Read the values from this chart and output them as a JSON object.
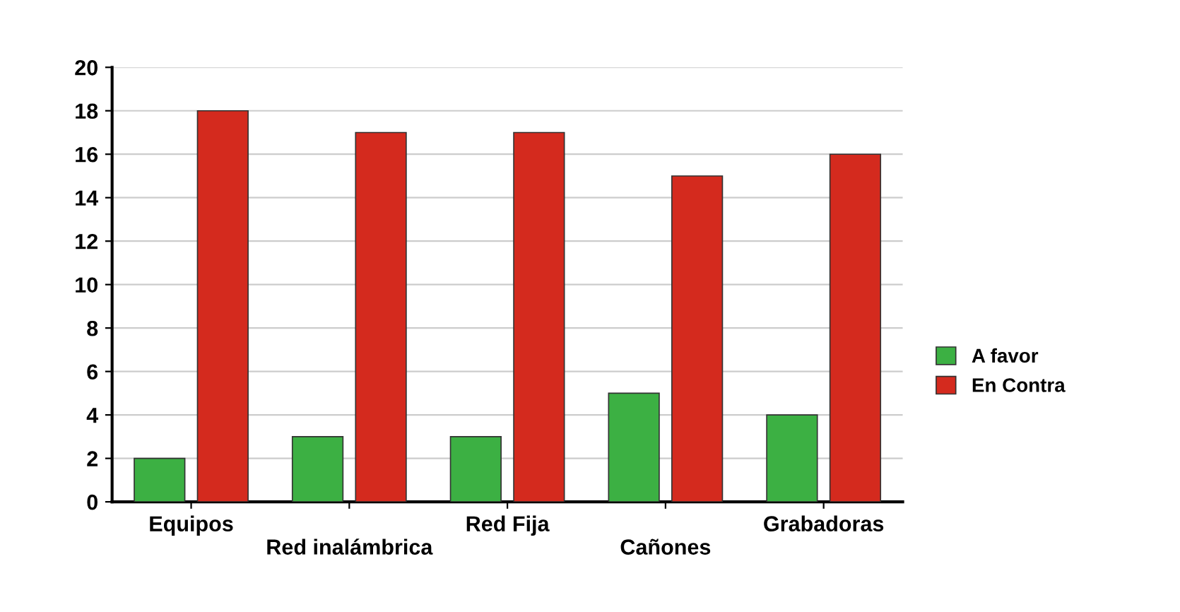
{
  "chart_data": {
    "type": "bar",
    "categories": [
      "Equipos",
      "Red inalámbrica",
      "Red Fija",
      "Cañones",
      "Grabadoras"
    ],
    "series": [
      {
        "name": "A favor",
        "color": "#3cb043",
        "values": [
          2,
          3,
          3,
          5,
          4
        ]
      },
      {
        "name": "En Contra",
        "color": "#d42a1e",
        "values": [
          18,
          17,
          17,
          15,
          16
        ]
      }
    ],
    "ylim": [
      0,
      20
    ],
    "yticks": [
      0,
      2,
      4,
      6,
      8,
      10,
      12,
      14,
      16,
      18,
      20
    ],
    "grid": "y",
    "legend": "right"
  }
}
